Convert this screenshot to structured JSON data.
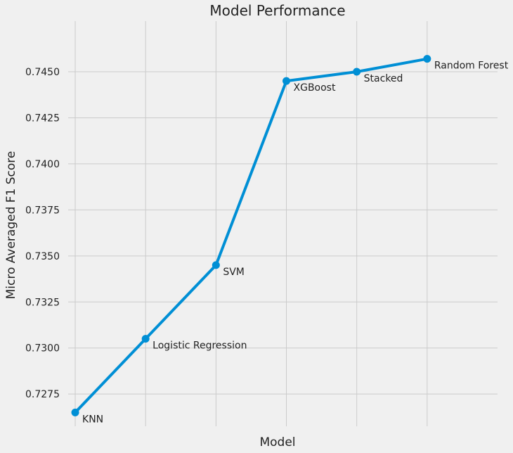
{
  "chart_data": {
    "type": "line",
    "title": "Model Performance",
    "xlabel": "Model",
    "ylabel": "Micro Averaged F1 Score",
    "categories": [
      "KNN",
      "Logistic Regression",
      "SVM",
      "XGBoost",
      "Stacked",
      "Random Forest"
    ],
    "series": [
      {
        "values": [
          0.7265,
          0.7305,
          0.7345,
          0.7445,
          0.745,
          0.7457
        ],
        "color": "#008fd5"
      }
    ],
    "xlim": [
      -0.1,
      6
    ],
    "ylim": [
      0.72575,
      0.74775
    ],
    "yticks": [
      0.7275,
      0.73,
      0.7325,
      0.735,
      0.7375,
      0.74,
      0.7425,
      0.745
    ],
    "ytick_labels": [
      "0.7275",
      "0.7300",
      "0.7325",
      "0.7350",
      "0.7375",
      "0.7400",
      "0.7425",
      "0.7450"
    ],
    "xticks": [
      0,
      1,
      2,
      3,
      4,
      5
    ],
    "show_xtick_labels": false,
    "grid": true,
    "legend": false,
    "background": "#f0f0f0",
    "grid_color": "#cbcbcb"
  }
}
